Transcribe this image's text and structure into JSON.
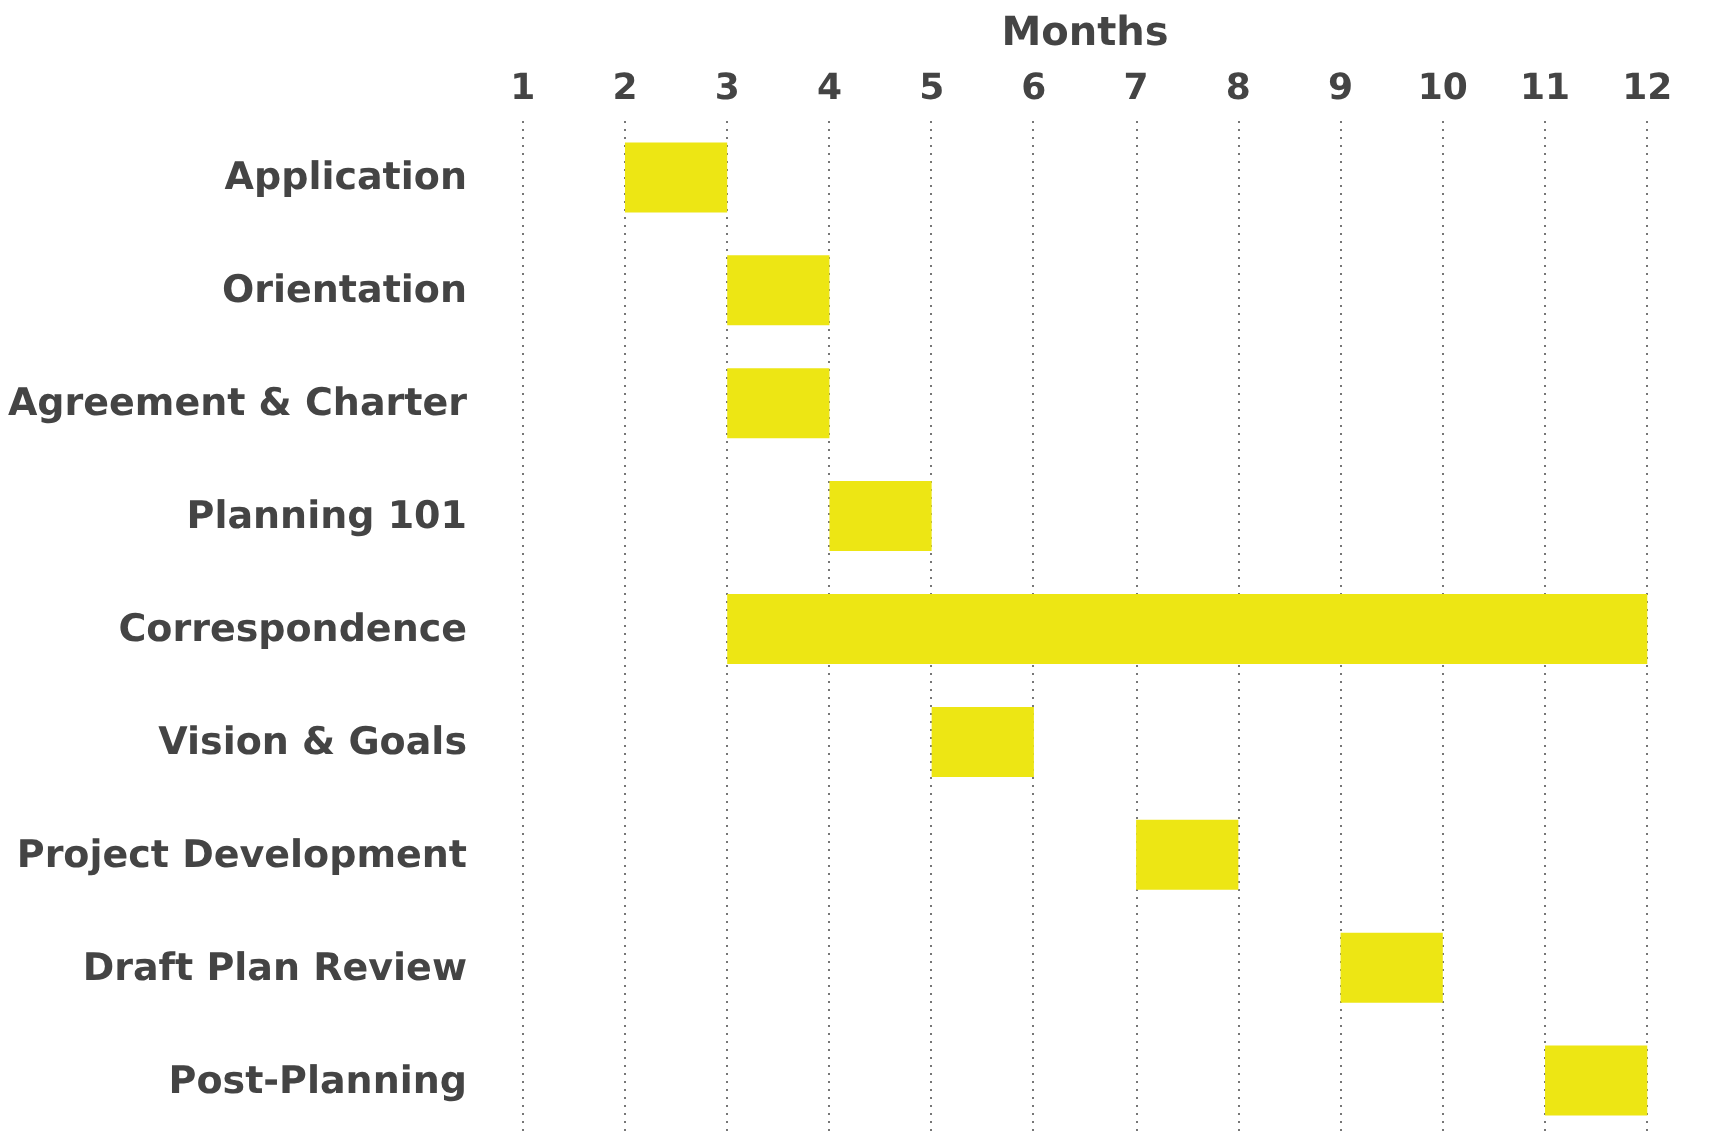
{
  "chart_data": {
    "type": "bar",
    "orientation": "horizontal",
    "xlabel": "Months",
    "categories": [
      "Application",
      "Orientation",
      "Agreement & Charter",
      "Planning 101",
      "Correspondence",
      "Vision & Goals",
      "Project Development",
      "Draft Plan Review",
      "Post-Planning"
    ],
    "base": [
      2,
      3,
      3,
      4,
      3,
      5,
      7,
      9,
      11
    ],
    "values": [
      1,
      1,
      1,
      1,
      9,
      1,
      1,
      1,
      1
    ],
    "color": "#ede614",
    "xlim": [
      1,
      12
    ],
    "xticks": [
      1,
      2,
      3,
      4,
      5,
      6,
      7,
      8,
      9,
      10,
      11,
      12
    ],
    "grid": "x"
  }
}
